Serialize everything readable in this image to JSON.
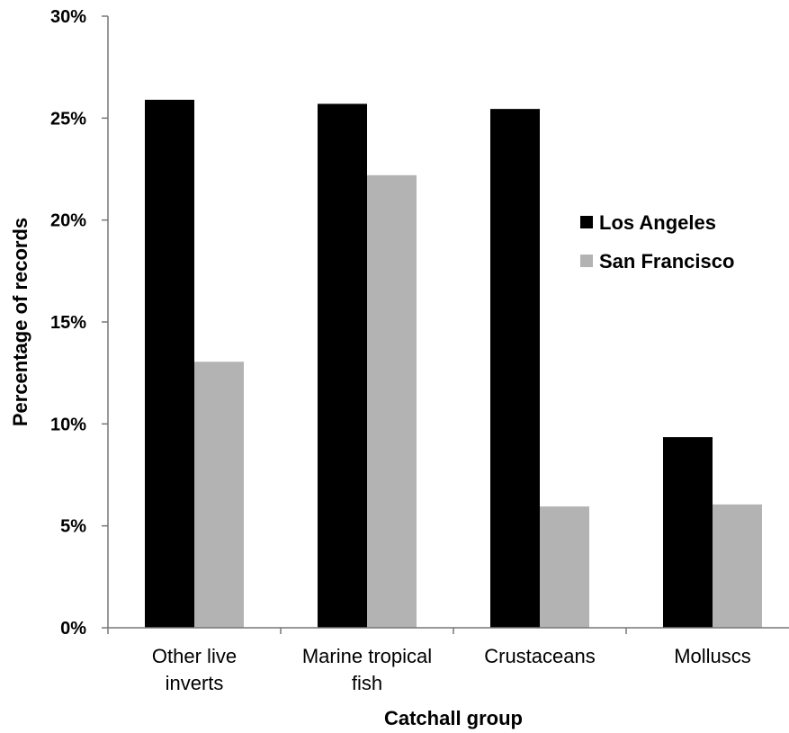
{
  "chart_data": {
    "type": "bar",
    "categories": [
      [
        "Other live",
        "inverts"
      ],
      [
        "Marine tropical",
        "fish"
      ],
      [
        "Crustaceans"
      ],
      [
        "Molluscs"
      ]
    ],
    "series": [
      {
        "name": "Los Angeles",
        "color": "#000000",
        "values": [
          25.9,
          25.7,
          25.45,
          9.35
        ]
      },
      {
        "name": "San Francisco",
        "color": "#b3b3b3",
        "values": [
          13.05,
          22.2,
          5.95,
          6.05
        ]
      }
    ],
    "xlabel": "Catchall group",
    "ylabel": "Percentage of records",
    "ylim": [
      0,
      30
    ],
    "yticks": [
      0,
      5,
      10,
      15,
      20,
      25,
      30
    ],
    "ytick_format": "percent",
    "grid": false,
    "legend_position": "right"
  }
}
